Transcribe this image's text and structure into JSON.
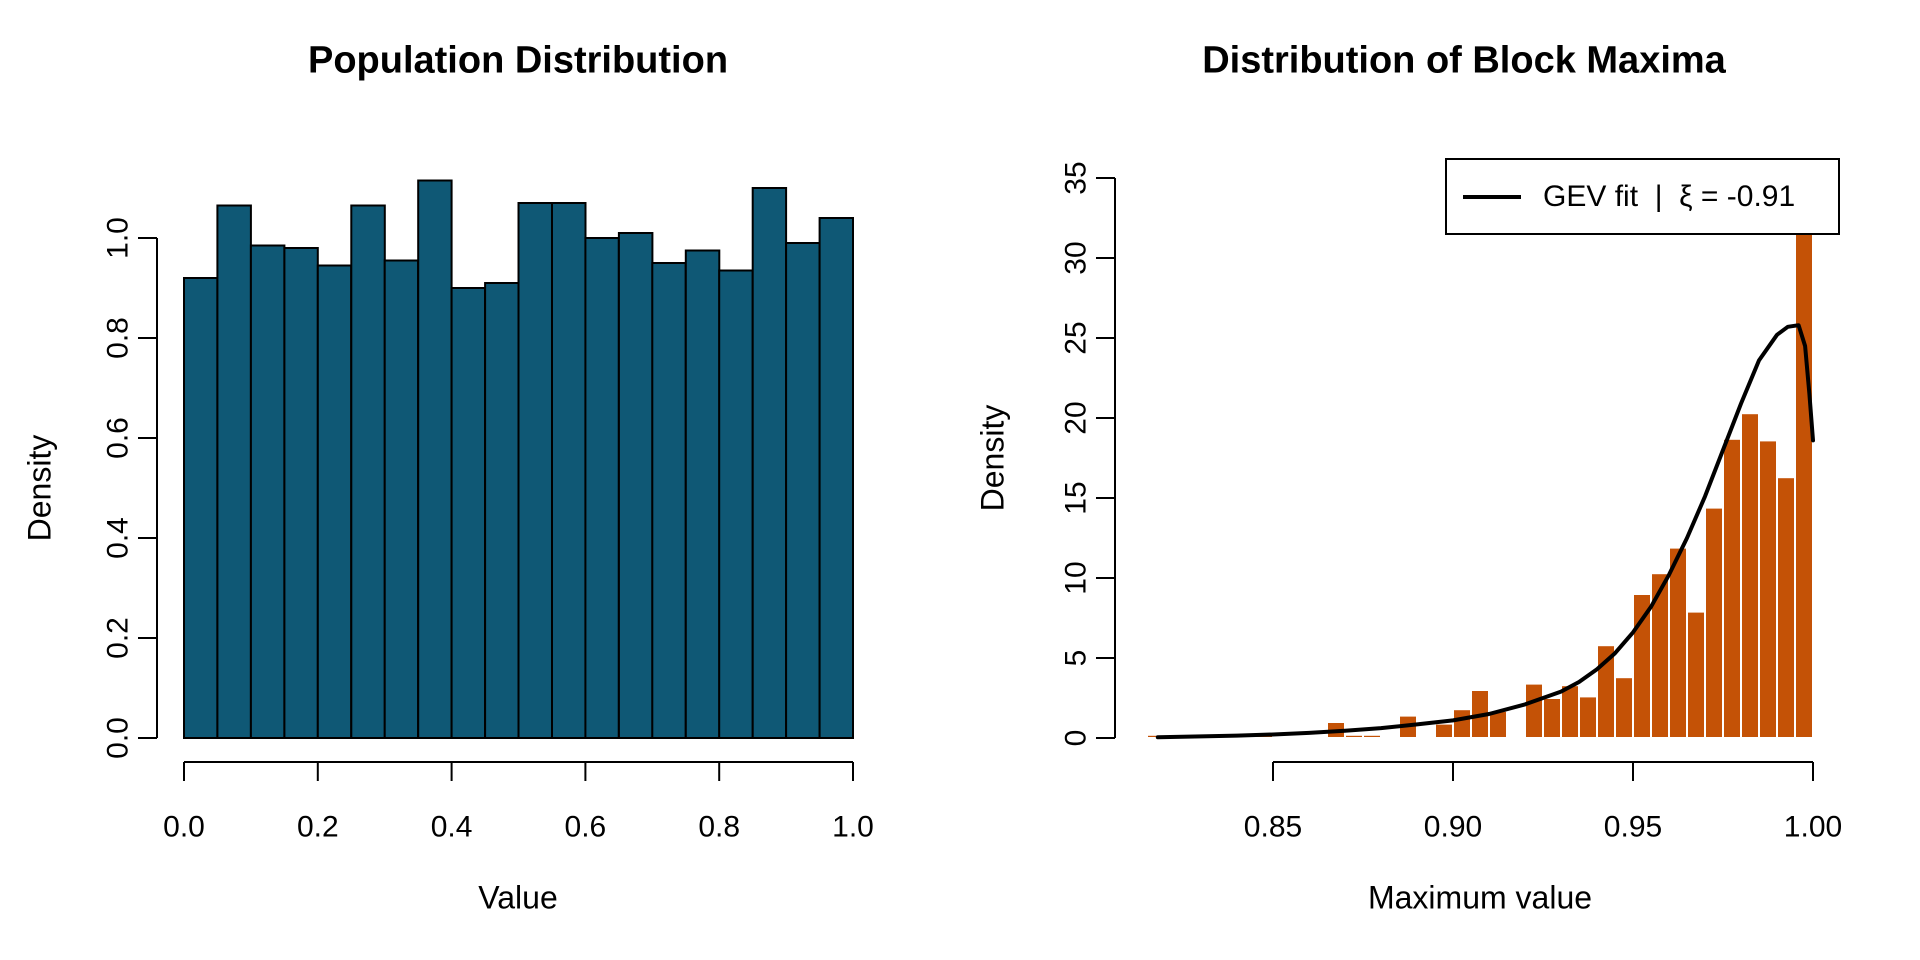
{
  "page": {
    "background": "#ffffff",
    "text_color": "#000000"
  },
  "chart_data": [
    {
      "type": "bar",
      "title": "Population Distribution",
      "xlabel": "Value",
      "ylabel": "Density",
      "bar_fill": "#0f5875",
      "bar_stroke": "#000000",
      "bin_start": 0.0,
      "bin_width": 0.05,
      "densities": [
        0.92,
        1.065,
        0.985,
        0.98,
        0.945,
        1.065,
        0.955,
        1.115,
        0.9,
        0.91,
        1.07,
        1.07,
        1.0,
        1.01,
        0.95,
        0.975,
        0.935,
        1.1,
        0.99,
        1.04
      ],
      "x_ticks": [
        0.0,
        0.2,
        0.4,
        0.6,
        0.8,
        1.0
      ],
      "x_tick_labels": [
        "0.0",
        "0.2",
        "0.4",
        "0.6",
        "0.8",
        "1.0"
      ],
      "y_ticks": [
        0.0,
        0.2,
        0.4,
        0.6,
        0.8,
        1.0
      ],
      "y_tick_labels": [
        "0.0",
        "0.2",
        "0.4",
        "0.6",
        "0.8",
        "1.0"
      ],
      "xlim": [
        0.0,
        1.0
      ],
      "ylim": [
        0.0,
        1.12
      ],
      "grid": false
    },
    {
      "type": "bar",
      "title": "Distribution of Block Maxima",
      "xlabel": "Maximum value",
      "ylabel": "Density",
      "bar_fill": "#c45206",
      "bar_stroke": "#ffffff",
      "bin_start": 0.815,
      "bin_width": 0.005,
      "densities": [
        0.2,
        0,
        0,
        0.2,
        0.2,
        0.2,
        0.2,
        0,
        0,
        0,
        1.0,
        0.2,
        0.2,
        0,
        1.4,
        0,
        0.9,
        1.8,
        3.0,
        1.7,
        0,
        3.4,
        2.5,
        3.3,
        2.6,
        5.8,
        3.8,
        9.0,
        10.3,
        11.9,
        7.9,
        14.4,
        18.7,
        20.3,
        18.6,
        16.3,
        31.5
      ],
      "x_ticks": [
        0.85,
        0.9,
        0.95,
        1.0
      ],
      "x_tick_labels": [
        "0.85",
        "0.90",
        "0.95",
        "1.00"
      ],
      "y_ticks": [
        0,
        5,
        10,
        15,
        20,
        25,
        30,
        35
      ],
      "y_tick_labels": [
        "0",
        "5",
        "10",
        "15",
        "20",
        "25",
        "30",
        "35"
      ],
      "xlim": [
        0.815,
        1.0
      ],
      "ylim": [
        0,
        35
      ],
      "grid": false,
      "legend_position": "topright",
      "curve": {
        "name": "GEV fit",
        "color": "#000000",
        "width": 4,
        "points": [
          [
            0.818,
            0.05
          ],
          [
            0.83,
            0.1
          ],
          [
            0.84,
            0.15
          ],
          [
            0.85,
            0.22
          ],
          [
            0.86,
            0.32
          ],
          [
            0.87,
            0.45
          ],
          [
            0.88,
            0.62
          ],
          [
            0.89,
            0.85
          ],
          [
            0.9,
            1.1
          ],
          [
            0.91,
            1.5
          ],
          [
            0.92,
            2.1
          ],
          [
            0.93,
            2.9
          ],
          [
            0.935,
            3.5
          ],
          [
            0.94,
            4.3
          ],
          [
            0.945,
            5.3
          ],
          [
            0.95,
            6.6
          ],
          [
            0.955,
            8.2
          ],
          [
            0.96,
            10.2
          ],
          [
            0.965,
            12.5
          ],
          [
            0.97,
            15.1
          ],
          [
            0.975,
            18.0
          ],
          [
            0.98,
            20.9
          ],
          [
            0.985,
            23.6
          ],
          [
            0.99,
            25.2
          ],
          [
            0.993,
            25.7
          ],
          [
            0.996,
            25.8
          ],
          [
            0.9978,
            24.5
          ],
          [
            0.999,
            21.5
          ],
          [
            1.0,
            18.6
          ]
        ]
      }
    }
  ],
  "legend": {
    "label": "GEV fit  |  ξ = -0.91"
  }
}
